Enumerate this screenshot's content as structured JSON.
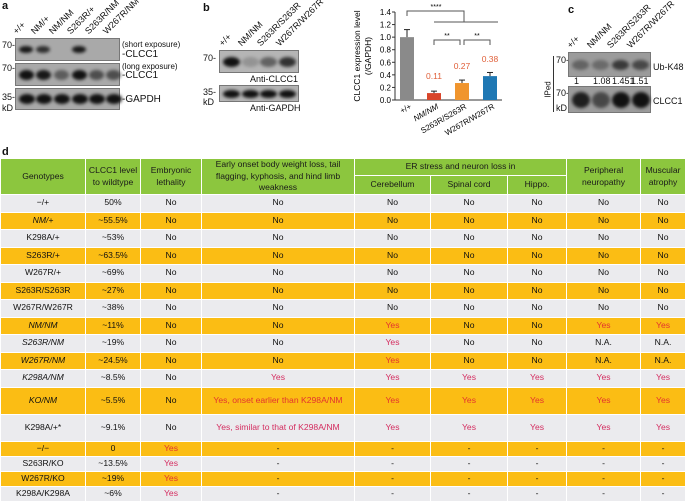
{
  "panel_a": {
    "label": "a",
    "lanes": [
      "+/+",
      "NM/+",
      "NM/NM",
      "S263R/+",
      "S263R/NM",
      "W267R/NM"
    ],
    "marker_70a": "70-",
    "marker_70b": "70-",
    "marker_35": "35-",
    "kd": "kD",
    "short": "(short exposure)",
    "long": "(long exposure)",
    "clcc1a": "-CLCC1",
    "clcc1b": "-CLCC1",
    "gapdh": "-GAPDH"
  },
  "panel_b": {
    "label": "b",
    "lanes": [
      "+/+",
      "NM/NM",
      "S263R/S263R",
      "W267R/W267R"
    ],
    "marker_70": "70-",
    "marker_35": "35-",
    "kd": "kD",
    "anti_clcc1": "Anti-CLCC1",
    "anti_gapdh": "Anti-GAPDH"
  },
  "chart_data": {
    "type": "bar",
    "categories": [
      "+/+",
      "NM/NM",
      "S263R/S263R",
      "W267R/W267R"
    ],
    "values": [
      1.0,
      0.11,
      0.27,
      0.38
    ],
    "data_labels": [
      "",
      "0.11",
      "0.27",
      "0.38"
    ],
    "colors": [
      "#8a8a8a",
      "#d9452a",
      "#f0952e",
      "#1f78b4"
    ],
    "label_color": "#e0603a",
    "ylabel": "CLCC1 expression level",
    "ylabel2": "(/GAPDH)",
    "ylim": [
      0,
      1.4
    ],
    "yticks": [
      "0.0",
      "0.2",
      "0.4",
      "0.6",
      "0.8",
      "1.0",
      "1.2",
      "1.4"
    ],
    "significance": [
      "****",
      "**",
      "**"
    ]
  },
  "panel_c": {
    "label": "c",
    "lanes": [
      "+/+",
      "NM/NM",
      "S263R/S263R",
      "W267R/W267R"
    ],
    "marker_70a": "70-",
    "marker_70b": "70-",
    "kd": "kD",
    "ub": "Ub-K48",
    "clcc1": "CLCC1",
    "iped": "IPed",
    "ratios": [
      "1",
      "1.08",
      "1.451",
      "1.51"
    ]
  },
  "panel_d": {
    "label": "d",
    "headers": {
      "genotypes": "Genotypes",
      "level": "CLCC1 level to wildtype",
      "lethality": "Embryonic lethality",
      "early": "Early onset body weight loss, tail flagging, kyphosis, and hind limb weakness",
      "er": "ER stress and neuron loss in",
      "cerebellum": "Cerebellum",
      "spinal": "Spinal cord",
      "hippo": "Hippo.",
      "peripheral": "Peripheral neuropathy",
      "muscular": "Muscular atrophy"
    },
    "rows": [
      [
        "−/+",
        "50%",
        "No",
        "No",
        "No",
        "No",
        "No",
        "No",
        "No"
      ],
      [
        "NM/+",
        "~55.5%",
        "No",
        "No",
        "No",
        "No",
        "No",
        "No",
        "No"
      ],
      [
        "K298A/+",
        "~53%",
        "No",
        "No",
        "No",
        "No",
        "No",
        "No",
        "No"
      ],
      [
        "S263R/+",
        "~63.5%",
        "No",
        "No",
        "No",
        "No",
        "No",
        "No",
        "No"
      ],
      [
        "W267R/+",
        "~69%",
        "No",
        "No",
        "No",
        "No",
        "No",
        "No",
        "No"
      ],
      [
        "S263R/S263R",
        "~27%",
        "No",
        "No",
        "No",
        "No",
        "No",
        "No",
        "No"
      ],
      [
        "W267R/W267R",
        "~38%",
        "No",
        "No",
        "No",
        "No",
        "No",
        "No",
        "No"
      ],
      [
        "NM/NM",
        "~11%",
        "No",
        "No",
        "Yes",
        "No",
        "No",
        "Yes",
        "Yes"
      ],
      [
        "S263R/NM",
        "~19%",
        "No",
        "No",
        "Yes",
        "No",
        "No",
        "N.A.",
        "N.A."
      ],
      [
        "W267R/NM",
        "~24.5%",
        "No",
        "No",
        "Yes",
        "No",
        "No",
        "N.A.",
        "N.A."
      ],
      [
        "K298A/NM",
        "~8.5%",
        "No",
        "Yes",
        "Yes",
        "Yes",
        "Yes",
        "Yes",
        "Yes"
      ],
      [
        "KO/NM",
        "~5.5%",
        "No",
        "Yes, onset earlier than K298A/NM",
        "Yes",
        "Yes",
        "Yes",
        "Yes",
        "Yes"
      ],
      [
        "K298A/+*",
        "~9.1%",
        "No",
        "Yes, similar to that of K298A/NM",
        "Yes",
        "Yes",
        "Yes",
        "Yes",
        "Yes"
      ],
      [
        "−/−",
        "0",
        "Yes",
        "-",
        "-",
        "-",
        "-",
        "-",
        "-"
      ],
      [
        "S263R/KO",
        "~13.5%",
        "Yes",
        "-",
        "-",
        "-",
        "-",
        "-",
        "-"
      ],
      [
        "W267R/KO",
        "~19%",
        "Yes",
        "-",
        "-",
        "-",
        "-",
        "-",
        "-"
      ],
      [
        "K298A/K298A",
        "~6%",
        "Yes",
        "-",
        "-",
        "-",
        "-",
        "-",
        "-"
      ]
    ]
  }
}
